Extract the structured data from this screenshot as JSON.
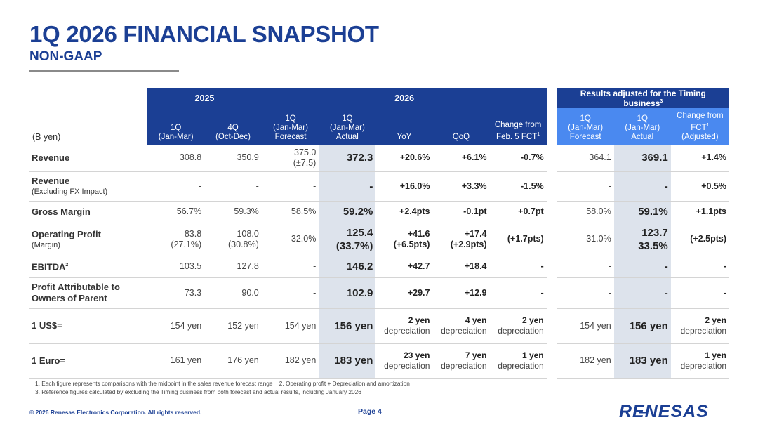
{
  "title": "1Q 2026 FINANCIAL SNAPSHOT",
  "subtitle": "NON-GAAP",
  "groups": {
    "y2025": "2025",
    "y2026": "2026",
    "adjusted": "Results adjusted for the Timing business"
  },
  "unit_label": "(B yen)",
  "columns": {
    "c1_a": "1Q",
    "c1_b": "(Jan-Mar)",
    "c2_a": "4Q",
    "c2_b": "(Oct-Dec)",
    "c3_a": "1Q",
    "c3_b": "(Jan-Mar)",
    "c3_c": "Forecast",
    "c4_a": "1Q",
    "c4_b": "(Jan-Mar)",
    "c4_c": "Actual",
    "c5": "YoY",
    "c6": "QoQ",
    "c7_a": "Change from",
    "c7_b": "Feb. 5 FCT",
    "c8_a": "1Q",
    "c8_b": "(Jan-Mar)",
    "c8_c": "Forecast",
    "c9_a": "1Q",
    "c9_b": "(Jan-Mar)",
    "c9_c": "Actual",
    "c10_a": "Change from",
    "c10_b": "FCT",
    "c10_c": "(Adjusted)"
  },
  "rows": {
    "revenue": {
      "label": "Revenue",
      "q1_2025": "308.8",
      "q4_2025": "350.9",
      "fct": "375.0",
      "fct_range": "(±7.5)",
      "actual": "372.3",
      "yoy": "+20.6%",
      "qoq": "+6.1%",
      "chg": "-0.7%",
      "adj_fct": "364.1",
      "adj_actual": "369.1",
      "adj_chg": "+1.4%"
    },
    "revenue_fx": {
      "label": "Revenue",
      "sublabel": "(Excluding FX Impact)",
      "q1_2025": "-",
      "q4_2025": "-",
      "fct": "-",
      "actual": "-",
      "yoy": "+16.0%",
      "qoq": "+3.3%",
      "chg": "-1.5%",
      "adj_fct": "-",
      "adj_actual": "-",
      "adj_chg": "+0.5%"
    },
    "gross_margin": {
      "label": "Gross Margin",
      "q1_2025": "56.7%",
      "q4_2025": "59.3%",
      "fct": "58.5%",
      "actual": "59.2%",
      "yoy": "+2.4pts",
      "qoq": "-0.1pt",
      "chg": "+0.7pt",
      "adj_fct": "58.0%",
      "adj_actual": "59.1%",
      "adj_chg": "+1.1pts"
    },
    "op_profit": {
      "label": "Operating Profit",
      "sublabel": "(Margin)",
      "q1_2025": "83.8",
      "q1_2025_m": "(27.1%)",
      "q4_2025": "108.0",
      "q4_2025_m": "(30.8%)",
      "fct": "32.0%",
      "actual": "125.4",
      "actual_m": "(33.7%)",
      "yoy": "+41.6",
      "yoy_m": "(+6.5pts)",
      "qoq": "+17.4",
      "qoq_m": "(+2.9pts)",
      "chg": "(+1.7pts)",
      "adj_fct": "31.0%",
      "adj_actual": "123.7",
      "adj_actual_m": "33.5%",
      "adj_chg": "(+2.5pts)"
    },
    "ebitda": {
      "label": "EBITDA",
      "q1_2025": "103.5",
      "q4_2025": "127.8",
      "fct": "-",
      "actual": "146.2",
      "yoy": "+42.7",
      "qoq": "+18.4",
      "chg": "-",
      "adj_fct": "-",
      "adj_actual": "-",
      "adj_chg": "-"
    },
    "profit_parent": {
      "label_a": "Profit Attributable to",
      "label_b": "Owners of Parent",
      "q1_2025": "73.3",
      "q4_2025": "90.0",
      "fct": "-",
      "actual": "102.9",
      "yoy": "+29.7",
      "qoq": "+12.9",
      "chg": "-",
      "adj_fct": "-",
      "adj_actual": "-",
      "adj_chg": "-"
    },
    "usd": {
      "label": "1 US$=",
      "q1_2025": "154 yen",
      "q4_2025": "152 yen",
      "fct": "154 yen",
      "actual": "156 yen",
      "yoy": "2 yen",
      "yoy_d": "depreciation",
      "qoq": "4 yen",
      "qoq_d": "depreciation",
      "chg": "2 yen",
      "chg_d": "depreciation",
      "adj_fct": "154 yen",
      "adj_actual": "156 yen",
      "adj_chg": "2 yen",
      "adj_chg_d": "depreciation"
    },
    "eur": {
      "label": "1 Euro=",
      "q1_2025": "161 yen",
      "q4_2025": "176 yen",
      "fct": "182 yen",
      "actual": "183 yen",
      "yoy": "23 yen",
      "yoy_d": "depreciation",
      "qoq": "7 yen",
      "qoq_d": "depreciation",
      "chg": "1 yen",
      "chg_d": "depreciation",
      "adj_fct": "182 yen",
      "adj_actual": "183 yen",
      "adj_chg": "1 yen",
      "adj_chg_d": "depreciation"
    }
  },
  "notes": {
    "n1": "1. Each figure represents comparisons with the midpoint in the sales revenue forecast range    2. Operating profit + Depreciation and amortization",
    "n2": "3. Reference figures calculated by excluding the Timing business from both forecast and actual results, including January 2026"
  },
  "footer": {
    "copyright": "© 2026 Renesas Electronics Corporation. All rights reserved.",
    "page": "Page 4",
    "logo_text": "RENESAS"
  },
  "colors": {
    "brand": "#1b3f94",
    "adjusted_header": "#4a89f0",
    "actual_shade": "#dde3ec"
  }
}
